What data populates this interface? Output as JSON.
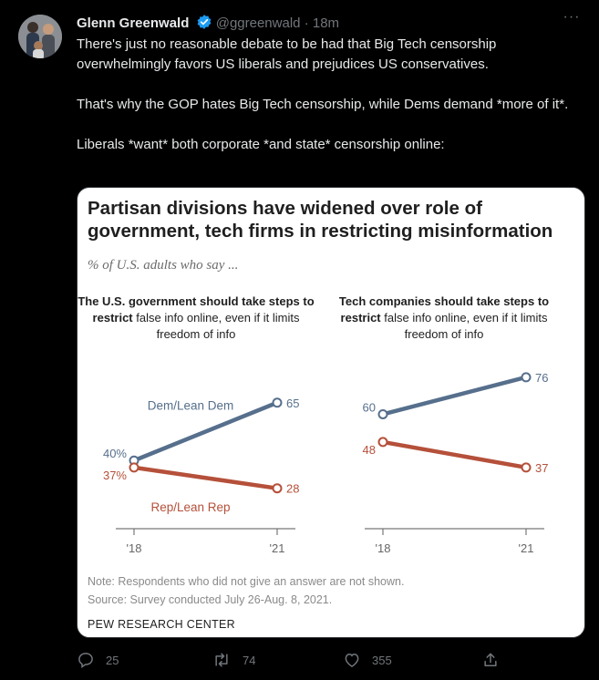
{
  "tweet": {
    "author_name": "Glenn Greenwald",
    "handle": "@ggreenwald",
    "separator": "·",
    "time": "18m",
    "more_label": "···",
    "text_paragraphs": [
      "There's just no reasonable debate to be had that Big Tech censorship overwhelmingly favors US liberals and prejudices US conservatives.",
      "That's why the GOP hates Big Tech censorship, while Dems demand *more of it*.",
      "Liberals *want* both corporate *and state* censorship online:"
    ]
  },
  "card": {
    "title": "Partisan divisions have widened over role of government, tech firms in restricting misinformation",
    "subtitle": "% of U.S. adults who say ...",
    "note": "Note: Respondents who did not give an answer are not shown.",
    "source": "Source: Survey conducted July 26-Aug. 8, 2021.",
    "brand": "PEW RESEARCH CENTER"
  },
  "chart_data": [
    {
      "type": "line",
      "title_bold": "The U.S. government should take steps to restrict",
      "title_rest": "false info online, even if it limits freedom of info",
      "categories": [
        "'18",
        "'21"
      ],
      "series": [
        {
          "name": "Dem/Lean Dem",
          "values": [
            40,
            65
          ],
          "labels": [
            "40%",
            "65"
          ],
          "color": "#566f8c"
        },
        {
          "name": "Rep/Lean Rep",
          "values": [
            37,
            28
          ],
          "labels": [
            "37%",
            "28"
          ],
          "color": "#b5503a"
        }
      ]
    },
    {
      "type": "line",
      "title_bold": "Tech companies should take steps to restrict",
      "title_rest": "false info online, even if it limits freedom of info",
      "categories": [
        "'18",
        "'21"
      ],
      "series": [
        {
          "name": "Dem/Lean Dem",
          "values": [
            60,
            76
          ],
          "labels": [
            "60",
            "76"
          ],
          "color": "#566f8c"
        },
        {
          "name": "Rep/Lean Rep",
          "values": [
            48,
            37
          ],
          "labels": [
            "48",
            "37"
          ],
          "color": "#b5503a"
        }
      ]
    }
  ],
  "actions": {
    "replies": "25",
    "retweets": "74",
    "likes": "355"
  },
  "colors": {
    "accent": "#1d9bf0",
    "muted": "#71767b"
  }
}
